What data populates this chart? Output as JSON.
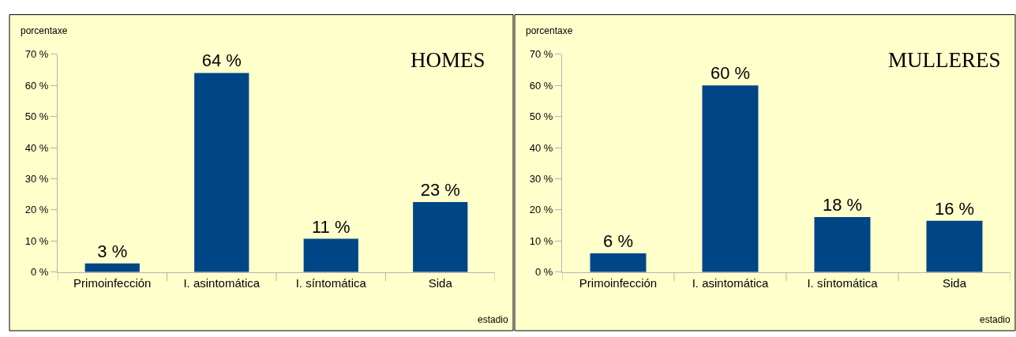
{
  "chart_data": [
    {
      "type": "bar",
      "title": "HOMES",
      "xlabel": "estadio",
      "ylabel": "porcentaxe",
      "categories": [
        "Primoinfección",
        "I. asintomática",
        "I. síntomática",
        "Sida"
      ],
      "values": [
        2.8,
        64,
        10.7,
        22.5
      ],
      "value_labels": [
        "3 %",
        "64 %",
        "11 %",
        "23 %"
      ],
      "color": "#004586",
      "ylim": [
        0,
        70
      ],
      "yticks": [
        {
          "value": 0,
          "label": "0 %"
        },
        {
          "value": 10,
          "label": "10 %"
        },
        {
          "value": 20,
          "label": "20 %"
        },
        {
          "value": 30,
          "label": "30 %"
        },
        {
          "value": 40,
          "label": "40 %"
        },
        {
          "value": 50,
          "label": "50 %"
        },
        {
          "value": 60,
          "label": "60 %"
        },
        {
          "value": 70,
          "label": "70 %"
        }
      ],
      "grid": false,
      "legend": false
    },
    {
      "type": "bar",
      "title": "MULLERES",
      "xlabel": "estadio",
      "ylabel": "porcentaxe",
      "categories": [
        "Primoinfección",
        "I. asintomática",
        "I. síntomática",
        "Sida"
      ],
      "values": [
        6,
        60,
        17.7,
        16.5
      ],
      "value_labels": [
        "6 %",
        "60 %",
        "18 %",
        "16 %"
      ],
      "color": "#004586",
      "ylim": [
        0,
        70
      ],
      "yticks": [
        {
          "value": 0,
          "label": "0 %"
        },
        {
          "value": 10,
          "label": "10 %"
        },
        {
          "value": 20,
          "label": "20 %"
        },
        {
          "value": 30,
          "label": "30 %"
        },
        {
          "value": 40,
          "label": "40 %"
        },
        {
          "value": 50,
          "label": "50 %"
        },
        {
          "value": 60,
          "label": "60 %"
        },
        {
          "value": 70,
          "label": "70 %"
        }
      ],
      "grid": false,
      "legend": false
    }
  ]
}
